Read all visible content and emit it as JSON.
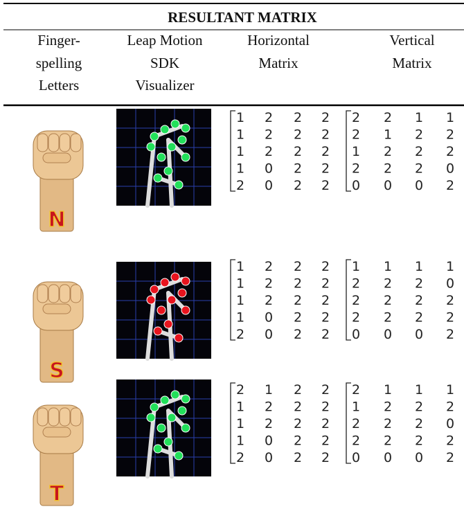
{
  "table": {
    "title": "RESULTANT MATRIX",
    "headers": [
      [
        "Finger-",
        "spelling",
        "Letters"
      ],
      [
        "Leap Motion",
        "SDK",
        "Visualizer"
      ],
      [
        "Horizontal",
        "Matrix"
      ],
      [
        "Vertical",
        "Matrix"
      ]
    ],
    "rows": [
      {
        "letter": "N",
        "horizontal": [
          [
            1,
            2,
            2,
            2
          ],
          [
            1,
            2,
            2,
            2
          ],
          [
            1,
            2,
            2,
            2
          ],
          [
            1,
            0,
            2,
            2
          ],
          [
            2,
            0,
            2,
            2
          ]
        ],
        "vertical": [
          [
            2,
            2,
            1,
            1
          ],
          [
            2,
            1,
            2,
            2
          ],
          [
            1,
            2,
            2,
            2
          ],
          [
            2,
            2,
            2,
            0
          ],
          [
            0,
            0,
            0,
            2
          ]
        ]
      },
      {
        "letter": "S",
        "horizontal": [
          [
            1,
            2,
            2,
            2
          ],
          [
            1,
            2,
            2,
            2
          ],
          [
            1,
            2,
            2,
            2
          ],
          [
            1,
            0,
            2,
            2
          ],
          [
            2,
            0,
            2,
            2
          ]
        ],
        "vertical": [
          [
            1,
            1,
            1,
            1
          ],
          [
            2,
            2,
            2,
            0
          ],
          [
            2,
            2,
            2,
            2
          ],
          [
            2,
            2,
            2,
            2
          ],
          [
            0,
            0,
            0,
            2
          ]
        ]
      },
      {
        "letter": "T",
        "horizontal": [
          [
            2,
            1,
            2,
            2
          ],
          [
            1,
            2,
            2,
            2
          ],
          [
            1,
            2,
            2,
            2
          ],
          [
            1,
            0,
            2,
            2
          ],
          [
            2,
            0,
            2,
            2
          ]
        ],
        "vertical": [
          [
            2,
            1,
            1,
            1
          ],
          [
            1,
            2,
            2,
            2
          ],
          [
            2,
            2,
            2,
            0
          ],
          [
            2,
            2,
            2,
            2
          ],
          [
            0,
            0,
            0,
            2
          ]
        ]
      }
    ]
  }
}
